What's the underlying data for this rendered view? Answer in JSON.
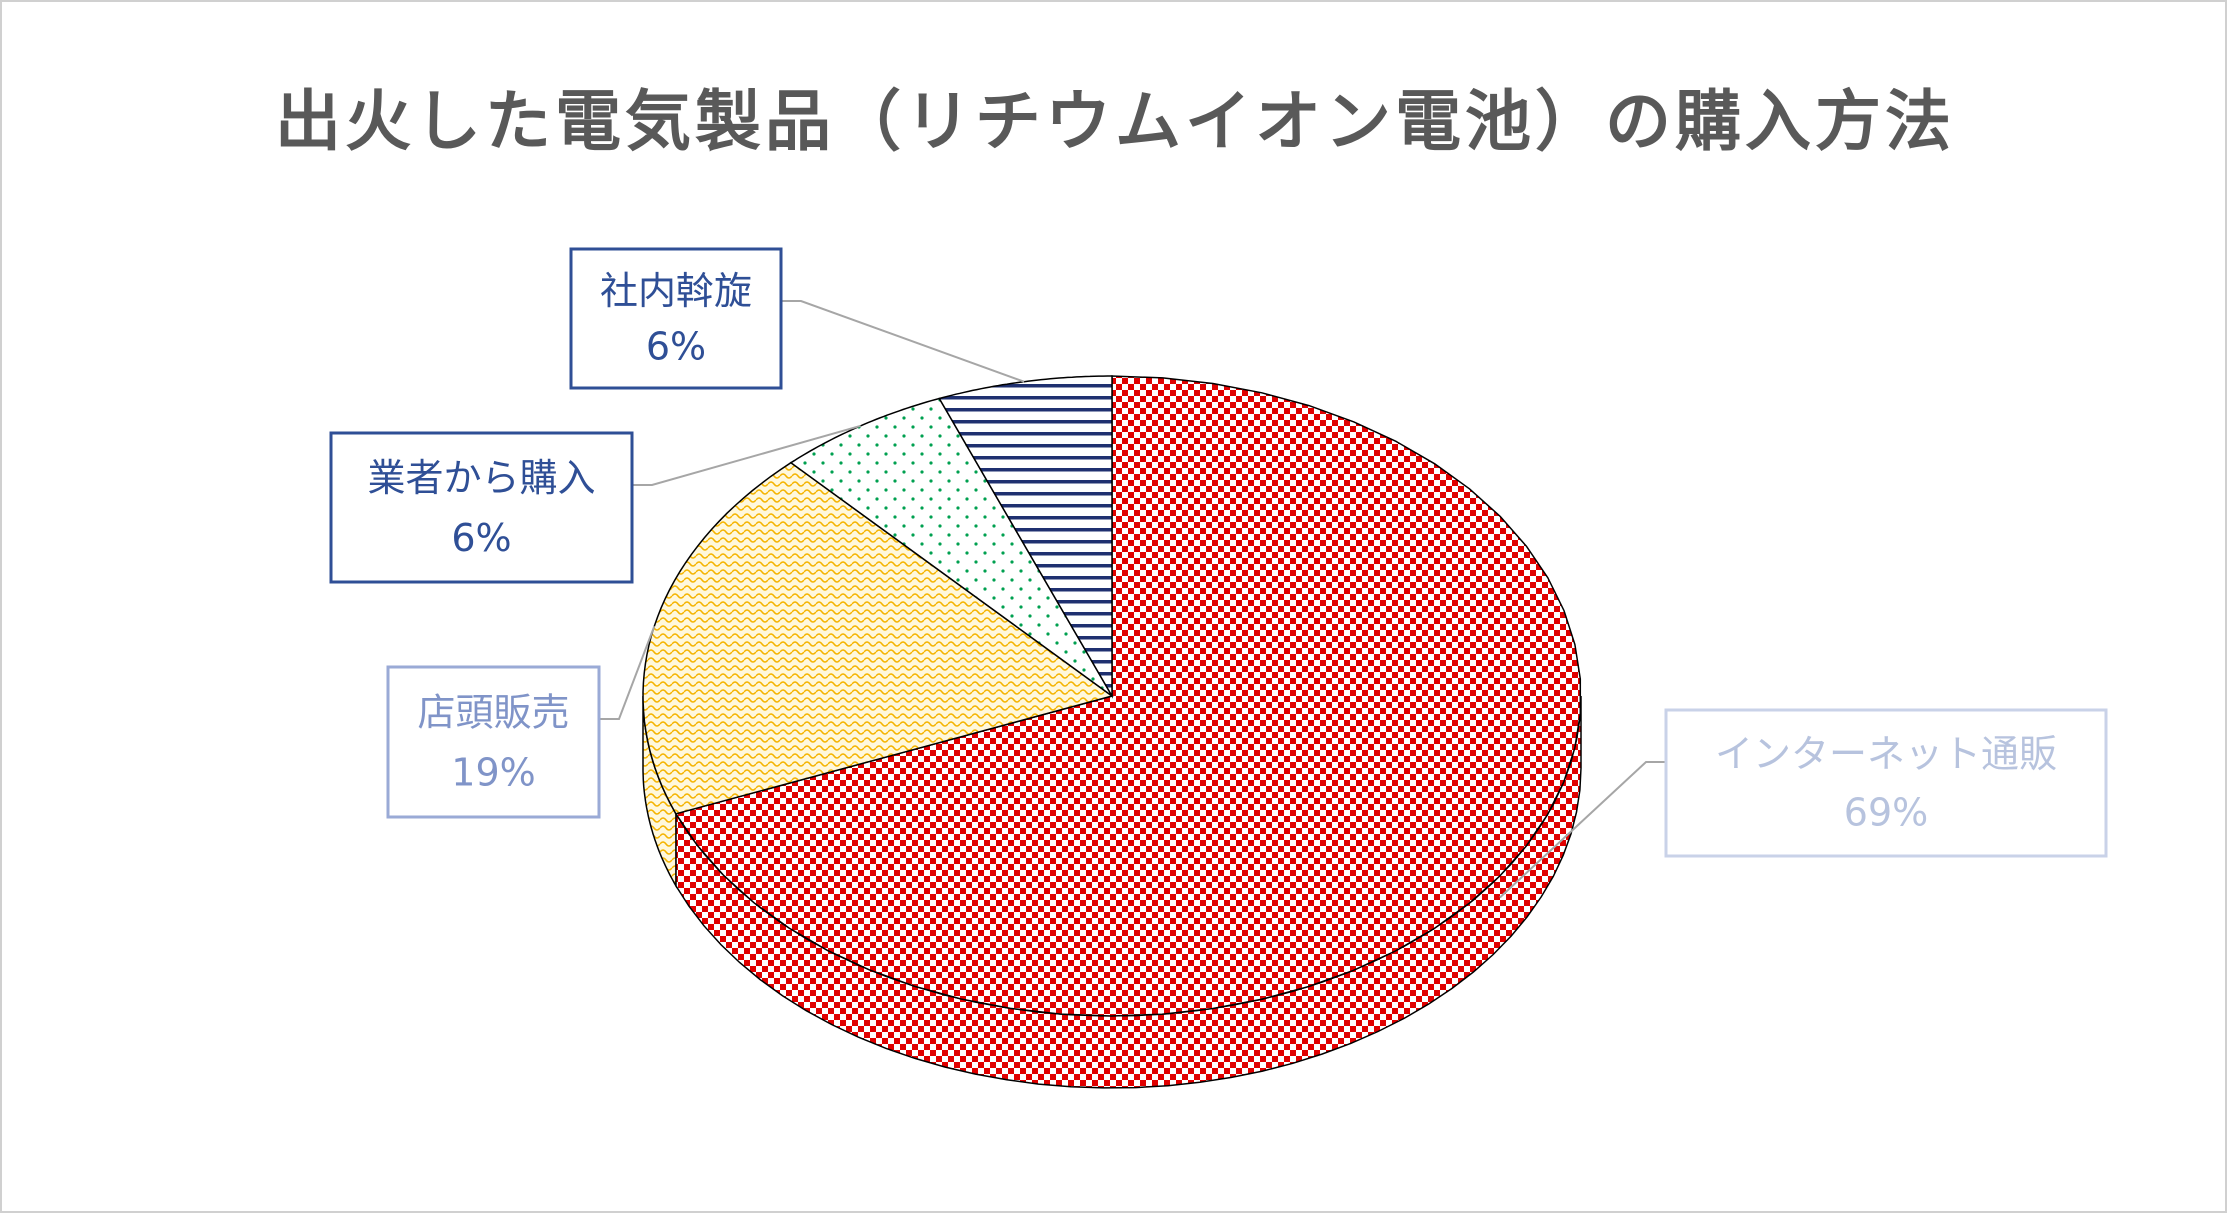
{
  "chart_data": {
    "type": "pie3d",
    "title": "出火した電気製品（リチウムイオン電池）の購入方法",
    "categories": [
      "インターネット通販",
      "店頭販売",
      "業者から購入",
      "社内斡旋"
    ],
    "values": [
      69,
      19,
      6,
      6
    ],
    "value_labels": [
      "69%",
      "19%",
      "6%",
      "6%"
    ],
    "colors": [
      "#e00000",
      "#f5b400",
      "#00a050",
      "#1f3070"
    ]
  }
}
